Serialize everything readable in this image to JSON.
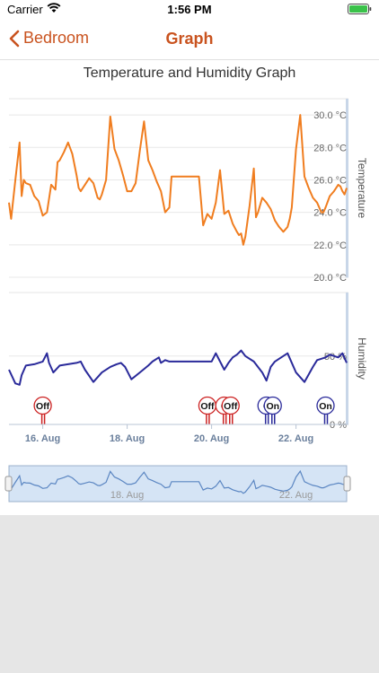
{
  "status_bar": {
    "carrier": "Carrier",
    "time": "1:56 PM"
  },
  "navbar": {
    "back_label": "Bedroom",
    "title": "Graph"
  },
  "chart_data": {
    "type": "line",
    "title": "Temperature and Humidity Graph",
    "x_ticks": [
      "16. Aug",
      "18. Aug",
      "20. Aug",
      "22. Aug"
    ],
    "temperature": {
      "label": "Temperature",
      "unit": "°C",
      "ylim": [
        20,
        31
      ],
      "ticks": [
        "30.0 °C",
        "28.0 °C",
        "26.0 °C",
        "24.0 °C",
        "22.0 °C",
        "20.0 °C"
      ],
      "color": "#f07d1f",
      "x_days": [
        15.2,
        15.25,
        15.35,
        15.45,
        15.5,
        15.55,
        15.6,
        15.7,
        15.8,
        15.9,
        16.0,
        16.1,
        16.2,
        16.3,
        16.35,
        16.4,
        16.5,
        16.6,
        16.7,
        16.8,
        16.85,
        16.9,
        17.0,
        17.1,
        17.2,
        17.3,
        17.35,
        17.4,
        17.5,
        17.6,
        17.7,
        17.8,
        17.9,
        18.0,
        18.1,
        18.2,
        18.3,
        18.4,
        18.5,
        18.6,
        18.7,
        18.8,
        18.9,
        19.0,
        19.05,
        19.1,
        19.2,
        19.3,
        19.4,
        19.5,
        19.6,
        19.7,
        19.8,
        19.9,
        20.0,
        20.1,
        20.2,
        20.3,
        20.4,
        20.5,
        20.6,
        20.65,
        20.7,
        20.75,
        20.8,
        20.9,
        21.0,
        21.05,
        21.1,
        21.2,
        21.3,
        21.4,
        21.5,
        21.6,
        21.7,
        21.8,
        21.85,
        21.9,
        22.0,
        22.1,
        22.2,
        22.3,
        22.4,
        22.5,
        22.6,
        22.65,
        22.7,
        22.8,
        22.9,
        23.0,
        23.05,
        23.1,
        23.15,
        23.2
      ],
      "values": [
        24.6,
        23.6,
        26.0,
        28.3,
        25.0,
        26.0,
        25.8,
        25.7,
        25.0,
        24.7,
        23.8,
        24.0,
        25.7,
        25.4,
        27.1,
        27.2,
        27.7,
        28.3,
        27.6,
        26.3,
        25.5,
        25.3,
        25.7,
        26.1,
        25.8,
        24.9,
        24.8,
        25.1,
        26.0,
        29.9,
        27.9,
        27.2,
        26.3,
        25.3,
        25.3,
        25.8,
        27.8,
        29.6,
        27.2,
        26.6,
        25.9,
        25.3,
        24.0,
        24.3,
        26.2,
        26.2,
        26.2,
        26.2,
        26.2,
        26.2,
        26.2,
        26.2,
        23.2,
        23.9,
        23.6,
        24.6,
        26.6,
        23.9,
        24.1,
        23.3,
        22.8,
        22.6,
        22.7,
        22.0,
        22.5,
        24.4,
        26.7,
        23.7,
        24.0,
        24.9,
        24.6,
        24.2,
        23.5,
        23.1,
        22.8,
        23.1,
        23.6,
        24.3,
        27.9,
        30.0,
        26.2,
        25.5,
        24.9,
        24.6,
        24.0,
        24.0,
        24.3,
        25.0,
        25.3,
        25.7,
        25.6,
        25.3,
        25.1,
        25.5
      ]
    },
    "humidity": {
      "label": "Humidity",
      "unit": "%",
      "ylim": [
        0,
        100
      ],
      "ticks": [
        "50 %",
        "0 %"
      ],
      "color": "#2a2a9a",
      "x_days": [
        15.2,
        15.35,
        15.45,
        15.5,
        15.6,
        15.8,
        16.0,
        16.1,
        16.15,
        16.25,
        16.4,
        16.6,
        16.8,
        16.9,
        17.0,
        17.2,
        17.4,
        17.6,
        17.75,
        17.85,
        17.95,
        18.1,
        18.3,
        18.5,
        18.6,
        18.75,
        18.8,
        18.9,
        19.0,
        19.2,
        19.4,
        19.6,
        19.7,
        19.8,
        19.9,
        20.0,
        20.1,
        20.3,
        20.4,
        20.5,
        20.6,
        20.7,
        20.8,
        21.0,
        21.2,
        21.3,
        21.4,
        21.5,
        21.6,
        21.8,
        22.0,
        22.2,
        22.4,
        22.5,
        22.6,
        22.7,
        22.8,
        23.0,
        23.1,
        23.2
      ],
      "values": [
        40,
        30,
        29,
        36,
        43,
        44,
        46,
        52,
        45,
        38,
        43,
        44,
        45,
        46,
        40,
        31,
        38,
        42,
        44,
        45,
        42,
        33,
        38,
        43,
        46,
        49,
        45,
        47,
        46,
        46,
        46,
        46,
        46,
        46,
        46,
        46,
        52,
        40,
        45,
        49,
        51,
        54,
        50,
        46,
        38,
        32,
        42,
        46,
        48,
        52,
        38,
        31,
        42,
        47,
        48,
        49,
        51,
        49,
        52,
        45
      ]
    },
    "events": [
      {
        "label": "Off",
        "day": 16.0,
        "color": "#cc2222"
      },
      {
        "label": "Off",
        "day": 19.9,
        "color": "#cc2222"
      },
      {
        "label": "C",
        "day": 20.3,
        "color": "#cc2222"
      },
      {
        "label": "Off",
        "day": 20.45,
        "color": "#cc2222"
      },
      {
        "label": "C",
        "day": 21.3,
        "color": "#2a2a9a"
      },
      {
        "label": "On",
        "day": 21.45,
        "color": "#2a2a9a"
      },
      {
        "label": "On",
        "day": 22.7,
        "color": "#2a2a9a"
      }
    ],
    "navigator": {
      "x_ticks": [
        "18. Aug",
        "22. Aug"
      ]
    },
    "grid": true
  }
}
